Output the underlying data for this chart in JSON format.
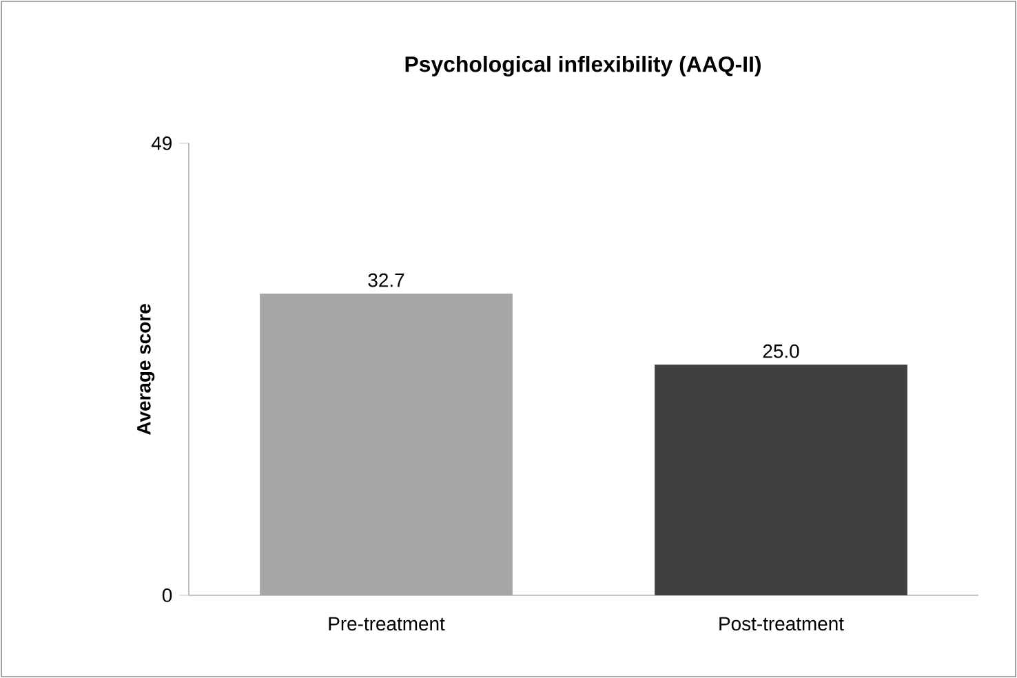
{
  "chart_data": {
    "type": "bar",
    "title": "Psychological inflexibility (AAQ-II)",
    "ylabel": "Average score",
    "categories": [
      "Pre-treatment",
      "Post-treatment"
    ],
    "values": [
      32.7,
      25.0
    ],
    "colors": [
      "#a6a6a6",
      "#404040"
    ],
    "value_labels": [
      "32.7",
      "25.0"
    ],
    "ylim": [
      0,
      49
    ],
    "yticks": [
      0,
      49
    ]
  }
}
